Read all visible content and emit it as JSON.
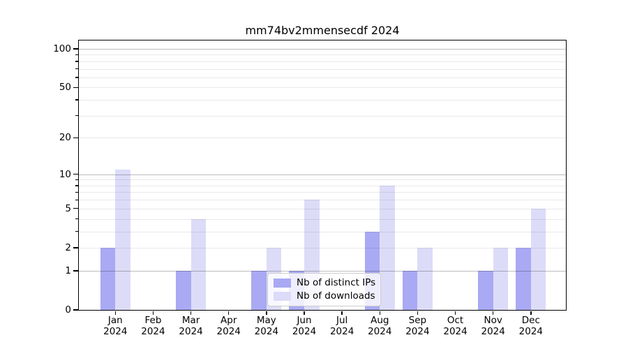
{
  "chart_data": {
    "type": "bar",
    "title": "mm74bv2mmensecdf 2024",
    "categories": [
      "Jan 2024",
      "Feb 2024",
      "Mar 2024",
      "Apr 2024",
      "May 2024",
      "Jun 2024",
      "Jul 2024",
      "Aug 2024",
      "Sep 2024",
      "Oct 2024",
      "Nov 2024",
      "Dec 2024"
    ],
    "series": [
      {
        "name": "Nb of distinct IPs",
        "color": "#a9a9f4",
        "values": [
          2,
          0,
          1,
          0,
          1,
          1,
          0,
          3,
          1,
          0,
          1,
          2
        ]
      },
      {
        "name": "Nb of downloads",
        "color": "#dcdcf8",
        "values": [
          11,
          0,
          4,
          0,
          2,
          6,
          0,
          8,
          2,
          0,
          2,
          5
        ]
      }
    ],
    "xlabel": "",
    "ylabel": "",
    "yscale": "log1p",
    "ylim": [
      0,
      116
    ],
    "yticks": [
      0,
      1,
      2,
      5,
      10,
      20,
      50,
      100
    ],
    "major_gridlines": [
      1,
      10,
      100
    ],
    "minor_gridlines": [
      2,
      3,
      4,
      5,
      6,
      7,
      8,
      9,
      20,
      30,
      40,
      50,
      60,
      70,
      80,
      90
    ],
    "grid": true,
    "legend_position": "lower center",
    "bar_grouping": "paired, series side by side per month"
  },
  "colors": {
    "background": "#ffffff",
    "spine": "#000000",
    "legend_border": "#cccccc"
  }
}
